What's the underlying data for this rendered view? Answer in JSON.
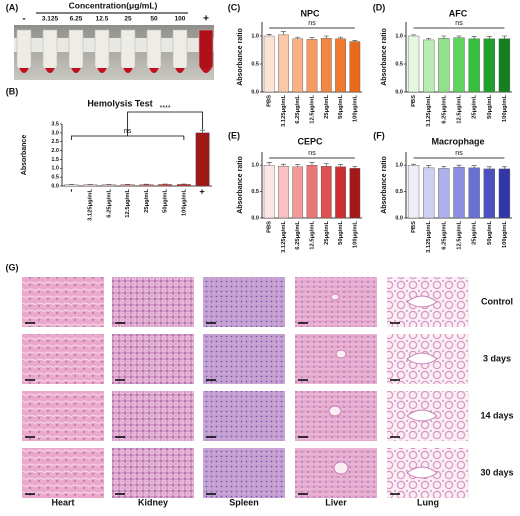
{
  "panel_a": {
    "label": "(A)",
    "title": "Concentration(μg/mL)",
    "labels": [
      "-",
      "3.125",
      "6.25",
      "12.5",
      "25",
      "50",
      "100",
      "+"
    ]
  },
  "chart_data": [
    {
      "type": "bar",
      "panel": "(B)",
      "title": "Hemolysis Test",
      "ylabel": "Absorbance",
      "categories": [
        "-",
        "3.125μg/mL",
        "6.25μg/mL",
        "12.5μg/mL",
        "25μg/mL",
        "50μg/mL",
        "100μg/mL",
        "+"
      ],
      "values": [
        0.07,
        0.07,
        0.07,
        0.08,
        0.08,
        0.09,
        0.09,
        3.0
      ],
      "errors": [
        0.01,
        0.01,
        0.01,
        0.01,
        0.02,
        0.02,
        0.02,
        0.15
      ],
      "colors": [
        "#ffffff",
        "#fbe1e1",
        "#f7c4c4",
        "#f19b9b",
        "#eb7070",
        "#e24d4d",
        "#d63030",
        "#a01818"
      ],
      "ylim": [
        0,
        3.5
      ],
      "yticks": [
        {
          "value": 0,
          "label": "0.0"
        },
        {
          "value": 0.5,
          "label": "0.5"
        },
        {
          "value": 1,
          "label": "1.0"
        },
        {
          "value": 1.5,
          "label": "1.5"
        },
        {
          "value": 2,
          "label": "2.0"
        },
        {
          "value": 2.5,
          "label": "2.5"
        },
        {
          "value": 3,
          "label": "3.0"
        },
        {
          "value": 3.5,
          "label": "3.5"
        }
      ],
      "annotations": [
        "ns",
        "****"
      ]
    },
    {
      "type": "bar",
      "panel": "(C)",
      "title": "NPC",
      "ylabel": "Absorbance ratio",
      "categories": [
        "PBS",
        "3.125μg/mL",
        "6.25μg/mL",
        "12.5μg/mL",
        "25μg/mL",
        "50μg/mL",
        "100μg/mL"
      ],
      "values": [
        1.0,
        1.02,
        0.95,
        0.94,
        0.96,
        0.95,
        0.9
      ],
      "errors": [
        0.03,
        0.06,
        0.03,
        0.03,
        0.04,
        0.03,
        0.02
      ],
      "colors": [
        "#fde3d4",
        "#fbc9a8",
        "#f9b184",
        "#f69a62",
        "#f28744",
        "#ef7a30",
        "#e66a1a"
      ],
      "ylim": [
        0,
        1.25
      ],
      "yticks": [
        {
          "value": 0,
          "label": "0.0"
        },
        {
          "value": 0.5,
          "label": "0.5"
        },
        {
          "value": 1,
          "label": "1.0"
        }
      ],
      "annotations": [
        "ns"
      ]
    },
    {
      "type": "bar",
      "panel": "(D)",
      "title": "AFC",
      "ylabel": "Absorbance ratio",
      "categories": [
        "PBS",
        "3.125μg/mL",
        "6.25μg/mL",
        "12.5μg/mL",
        "25μg/mL",
        "50μg/mL",
        "100μg/mL"
      ],
      "values": [
        1.0,
        0.93,
        0.96,
        0.97,
        0.95,
        0.95,
        0.95
      ],
      "errors": [
        0.02,
        0.03,
        0.04,
        0.03,
        0.04,
        0.04,
        0.05
      ],
      "colors": [
        "#e6f7e0",
        "#b8ecb0",
        "#8fe18a",
        "#5fd35d",
        "#33c03a",
        "#1ea12a",
        "#138020"
      ],
      "ylim": [
        0,
        1.25
      ],
      "yticks": [
        {
          "value": 0,
          "label": "0.0"
        },
        {
          "value": 0.5,
          "label": "0.5"
        },
        {
          "value": 1,
          "label": "1.0"
        }
      ],
      "annotations": [
        "ns"
      ]
    },
    {
      "type": "bar",
      "panel": "(E)",
      "title": "CEPC",
      "ylabel": "Absorbance ratio",
      "categories": [
        "PBS",
        "3.125μg/mL",
        "6.25μg/mL",
        "12.5μg/mL",
        "25μg/mL",
        "50μg/mL",
        "100μg/mL"
      ],
      "values": [
        1.0,
        0.98,
        0.97,
        1.0,
        0.98,
        0.97,
        0.94
      ],
      "errors": [
        0.05,
        0.04,
        0.04,
        0.05,
        0.05,
        0.04,
        0.04
      ],
      "colors": [
        "#fde6e6",
        "#f8c2c2",
        "#f29a9a",
        "#ec7575",
        "#e05050",
        "#cc3030",
        "#a51818"
      ],
      "ylim": [
        0,
        1.25
      ],
      "yticks": [
        {
          "value": 0,
          "label": "0.0"
        },
        {
          "value": 0.5,
          "label": "0.5"
        },
        {
          "value": 1,
          "label": "1.0"
        }
      ],
      "annotations": [
        "ns"
      ]
    },
    {
      "type": "bar",
      "panel": "(F)",
      "title": "Macrophage",
      "ylabel": "Absorbance ratio",
      "categories": [
        "PBS",
        "3.125μg/mL",
        "6.25μg/mL",
        "12.5μg/mL",
        "25μg/mL",
        "50μg/mL",
        "100μg/mL"
      ],
      "values": [
        1.0,
        0.95,
        0.94,
        0.96,
        0.95,
        0.93,
        0.93
      ],
      "errors": [
        0.02,
        0.04,
        0.04,
        0.04,
        0.04,
        0.04,
        0.04
      ],
      "colors": [
        "#eeeefa",
        "#cfd1f3",
        "#adb0ea",
        "#8a8ee0",
        "#6a6fd4",
        "#4c50c0",
        "#3336a6"
      ],
      "ylim": [
        0,
        1.25
      ],
      "yticks": [
        {
          "value": 0,
          "label": "0.0"
        },
        {
          "value": 0.5,
          "label": "0.5"
        },
        {
          "value": 1,
          "label": "1.0"
        }
      ],
      "annotations": [
        "ns"
      ]
    }
  ],
  "panel_g": {
    "label": "(G)",
    "rows": [
      "Control",
      "3 days",
      "14 days",
      "30 days"
    ],
    "columns": [
      "Heart",
      "Kidney",
      "Spleen",
      "Liver",
      "Lung"
    ]
  }
}
